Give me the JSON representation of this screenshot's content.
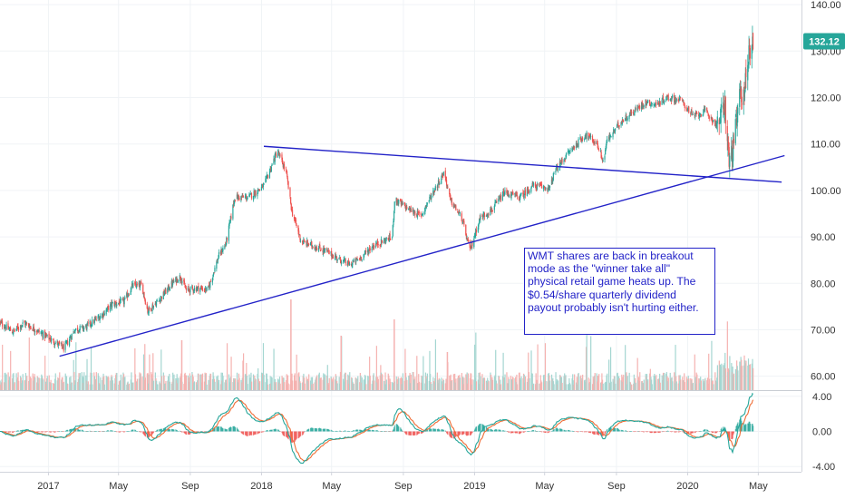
{
  "chart_data": {
    "type": "candlestick",
    "symbol": "WMT",
    "last_price": "132.12",
    "last_price_value": 132.12,
    "price_axis": {
      "range": [
        57,
        141
      ],
      "ticks": [
        "140.00",
        "130.00",
        "120.00",
        "110.00",
        "100.00",
        "90.00",
        "80.00",
        "70.00",
        "60.00"
      ],
      "tick_values": [
        140,
        130,
        120,
        110,
        100,
        90,
        80,
        70,
        60
      ]
    },
    "macd_axis": {
      "range": [
        -4.6,
        4.6
      ],
      "ticks": [
        "4.00",
        "0.00",
        "-4.00"
      ],
      "tick_values": [
        4,
        0,
        -4
      ]
    },
    "x_axis": {
      "range": [
        "2016-10-10",
        "2020-07-14"
      ],
      "ticks": [
        {
          "label": "2017",
          "date": "2017-01-01"
        },
        {
          "label": "May",
          "date": "2017-05-01"
        },
        {
          "label": "Sep",
          "date": "2017-09-01"
        },
        {
          "label": "2018",
          "date": "2018-01-01"
        },
        {
          "label": "May",
          "date": "2018-05-01"
        },
        {
          "label": "Sep",
          "date": "2018-09-01"
        },
        {
          "label": "2019",
          "date": "2019-01-01"
        },
        {
          "label": "May",
          "date": "2019-05-01"
        },
        {
          "label": "Sep",
          "date": "2019-09-01"
        },
        {
          "label": "2020",
          "date": "2020-01-01"
        },
        {
          "label": "May",
          "date": "2020-05-01"
        }
      ]
    },
    "price_path": [
      [
        "2016-10-10",
        71.5
      ],
      [
        "2016-11-01",
        69.5
      ],
      [
        "2016-11-20",
        71.5
      ],
      [
        "2016-12-10",
        70.0
      ],
      [
        "2017-01-10",
        67.5
      ],
      [
        "2017-01-28",
        66.0
      ],
      [
        "2017-02-15",
        70.0
      ],
      [
        "2017-03-05",
        70.5
      ],
      [
        "2017-04-01",
        73.0
      ],
      [
        "2017-04-20",
        75.5
      ],
      [
        "2017-05-10",
        76.0
      ],
      [
        "2017-05-25",
        79.5
      ],
      [
        "2017-06-10",
        79.5
      ],
      [
        "2017-06-20",
        74.0
      ],
      [
        "2017-07-10",
        76.5
      ],
      [
        "2017-08-01",
        80.0
      ],
      [
        "2017-08-15",
        81.5
      ],
      [
        "2017-08-25",
        78.5
      ],
      [
        "2017-09-15",
        79.0
      ],
      [
        "2017-10-01",
        78.5
      ],
      [
        "2017-10-20",
        86.0
      ],
      [
        "2017-11-01",
        88.5
      ],
      [
        "2017-11-16",
        98.5
      ],
      [
        "2017-12-10",
        98.5
      ],
      [
        "2018-01-05",
        101.0
      ],
      [
        "2018-01-28",
        108.5
      ],
      [
        "2018-02-12",
        104.0
      ],
      [
        "2018-02-22",
        95.5
      ],
      [
        "2018-03-10",
        89.0
      ],
      [
        "2018-04-01",
        88.0
      ],
      [
        "2018-04-20",
        87.0
      ],
      [
        "2018-05-10",
        85.5
      ],
      [
        "2018-06-01",
        84.0
      ],
      [
        "2018-06-20",
        85.5
      ],
      [
        "2018-07-10",
        88.0
      ],
      [
        "2018-08-13",
        90.0
      ],
      [
        "2018-08-17",
        98.0
      ],
      [
        "2018-09-10",
        96.0
      ],
      [
        "2018-10-01",
        94.5
      ],
      [
        "2018-10-15",
        98.0
      ],
      [
        "2018-11-10",
        104.0
      ],
      [
        "2018-11-20",
        98.0
      ],
      [
        "2018-12-10",
        94.0
      ],
      [
        "2018-12-24",
        87.0
      ],
      [
        "2019-01-10",
        94.0
      ],
      [
        "2019-02-01",
        96.0
      ],
      [
        "2019-02-21",
        99.5
      ],
      [
        "2019-03-20",
        98.5
      ],
      [
        "2019-04-10",
        101.0
      ],
      [
        "2019-05-10",
        100.5
      ],
      [
        "2019-05-18",
        104.0
      ],
      [
        "2019-06-10",
        108.0
      ],
      [
        "2019-07-10",
        112.0
      ],
      [
        "2019-07-30",
        110.0
      ],
      [
        "2019-08-10",
        106.0
      ],
      [
        "2019-08-15",
        110.5
      ],
      [
        "2019-09-10",
        115.0
      ],
      [
        "2019-10-01",
        117.0
      ],
      [
        "2019-10-20",
        119.0
      ],
      [
        "2019-11-10",
        118.5
      ],
      [
        "2019-11-25",
        120.0
      ],
      [
        "2019-12-20",
        119.5
      ],
      [
        "2020-01-10",
        116.0
      ],
      [
        "2020-02-01",
        117.0
      ],
      [
        "2020-02-20",
        114.0
      ],
      [
        "2020-03-05",
        118.0
      ],
      [
        "2020-03-12",
        106.0
      ],
      [
        "2020-03-20",
        110.0
      ],
      [
        "2020-03-30",
        120.0
      ],
      [
        "2020-04-08",
        122.0
      ],
      [
        "2020-04-15",
        130.0
      ],
      [
        "2020-04-22",
        132.12
      ]
    ],
    "trendlines": [
      {
        "name": "descending-resistance",
        "from": [
          "2018-01-05",
          109.5
        ],
        "to": [
          "2020-06-10",
          101.8
        ]
      },
      {
        "name": "ascending-support",
        "from": [
          "2017-01-20",
          64.3
        ],
        "to": [
          "2020-06-15",
          107.5
        ]
      }
    ],
    "colors": {
      "up": "#26a69a",
      "down": "#ef5350",
      "volume_up": "#a4d6d1",
      "volume_down": "#f5b2b0",
      "trendline": "#2323c8",
      "macd_line": "#26a69a",
      "signal_line": "#ef6c35",
      "price_label_bg": "#26a69a"
    }
  },
  "annotation": {
    "text": "WMT shares are back in breakout mode as the \"winner take all\" physical retail game heats up. The $0.54/share quarterly dividend payout probably isn't hurting either."
  }
}
